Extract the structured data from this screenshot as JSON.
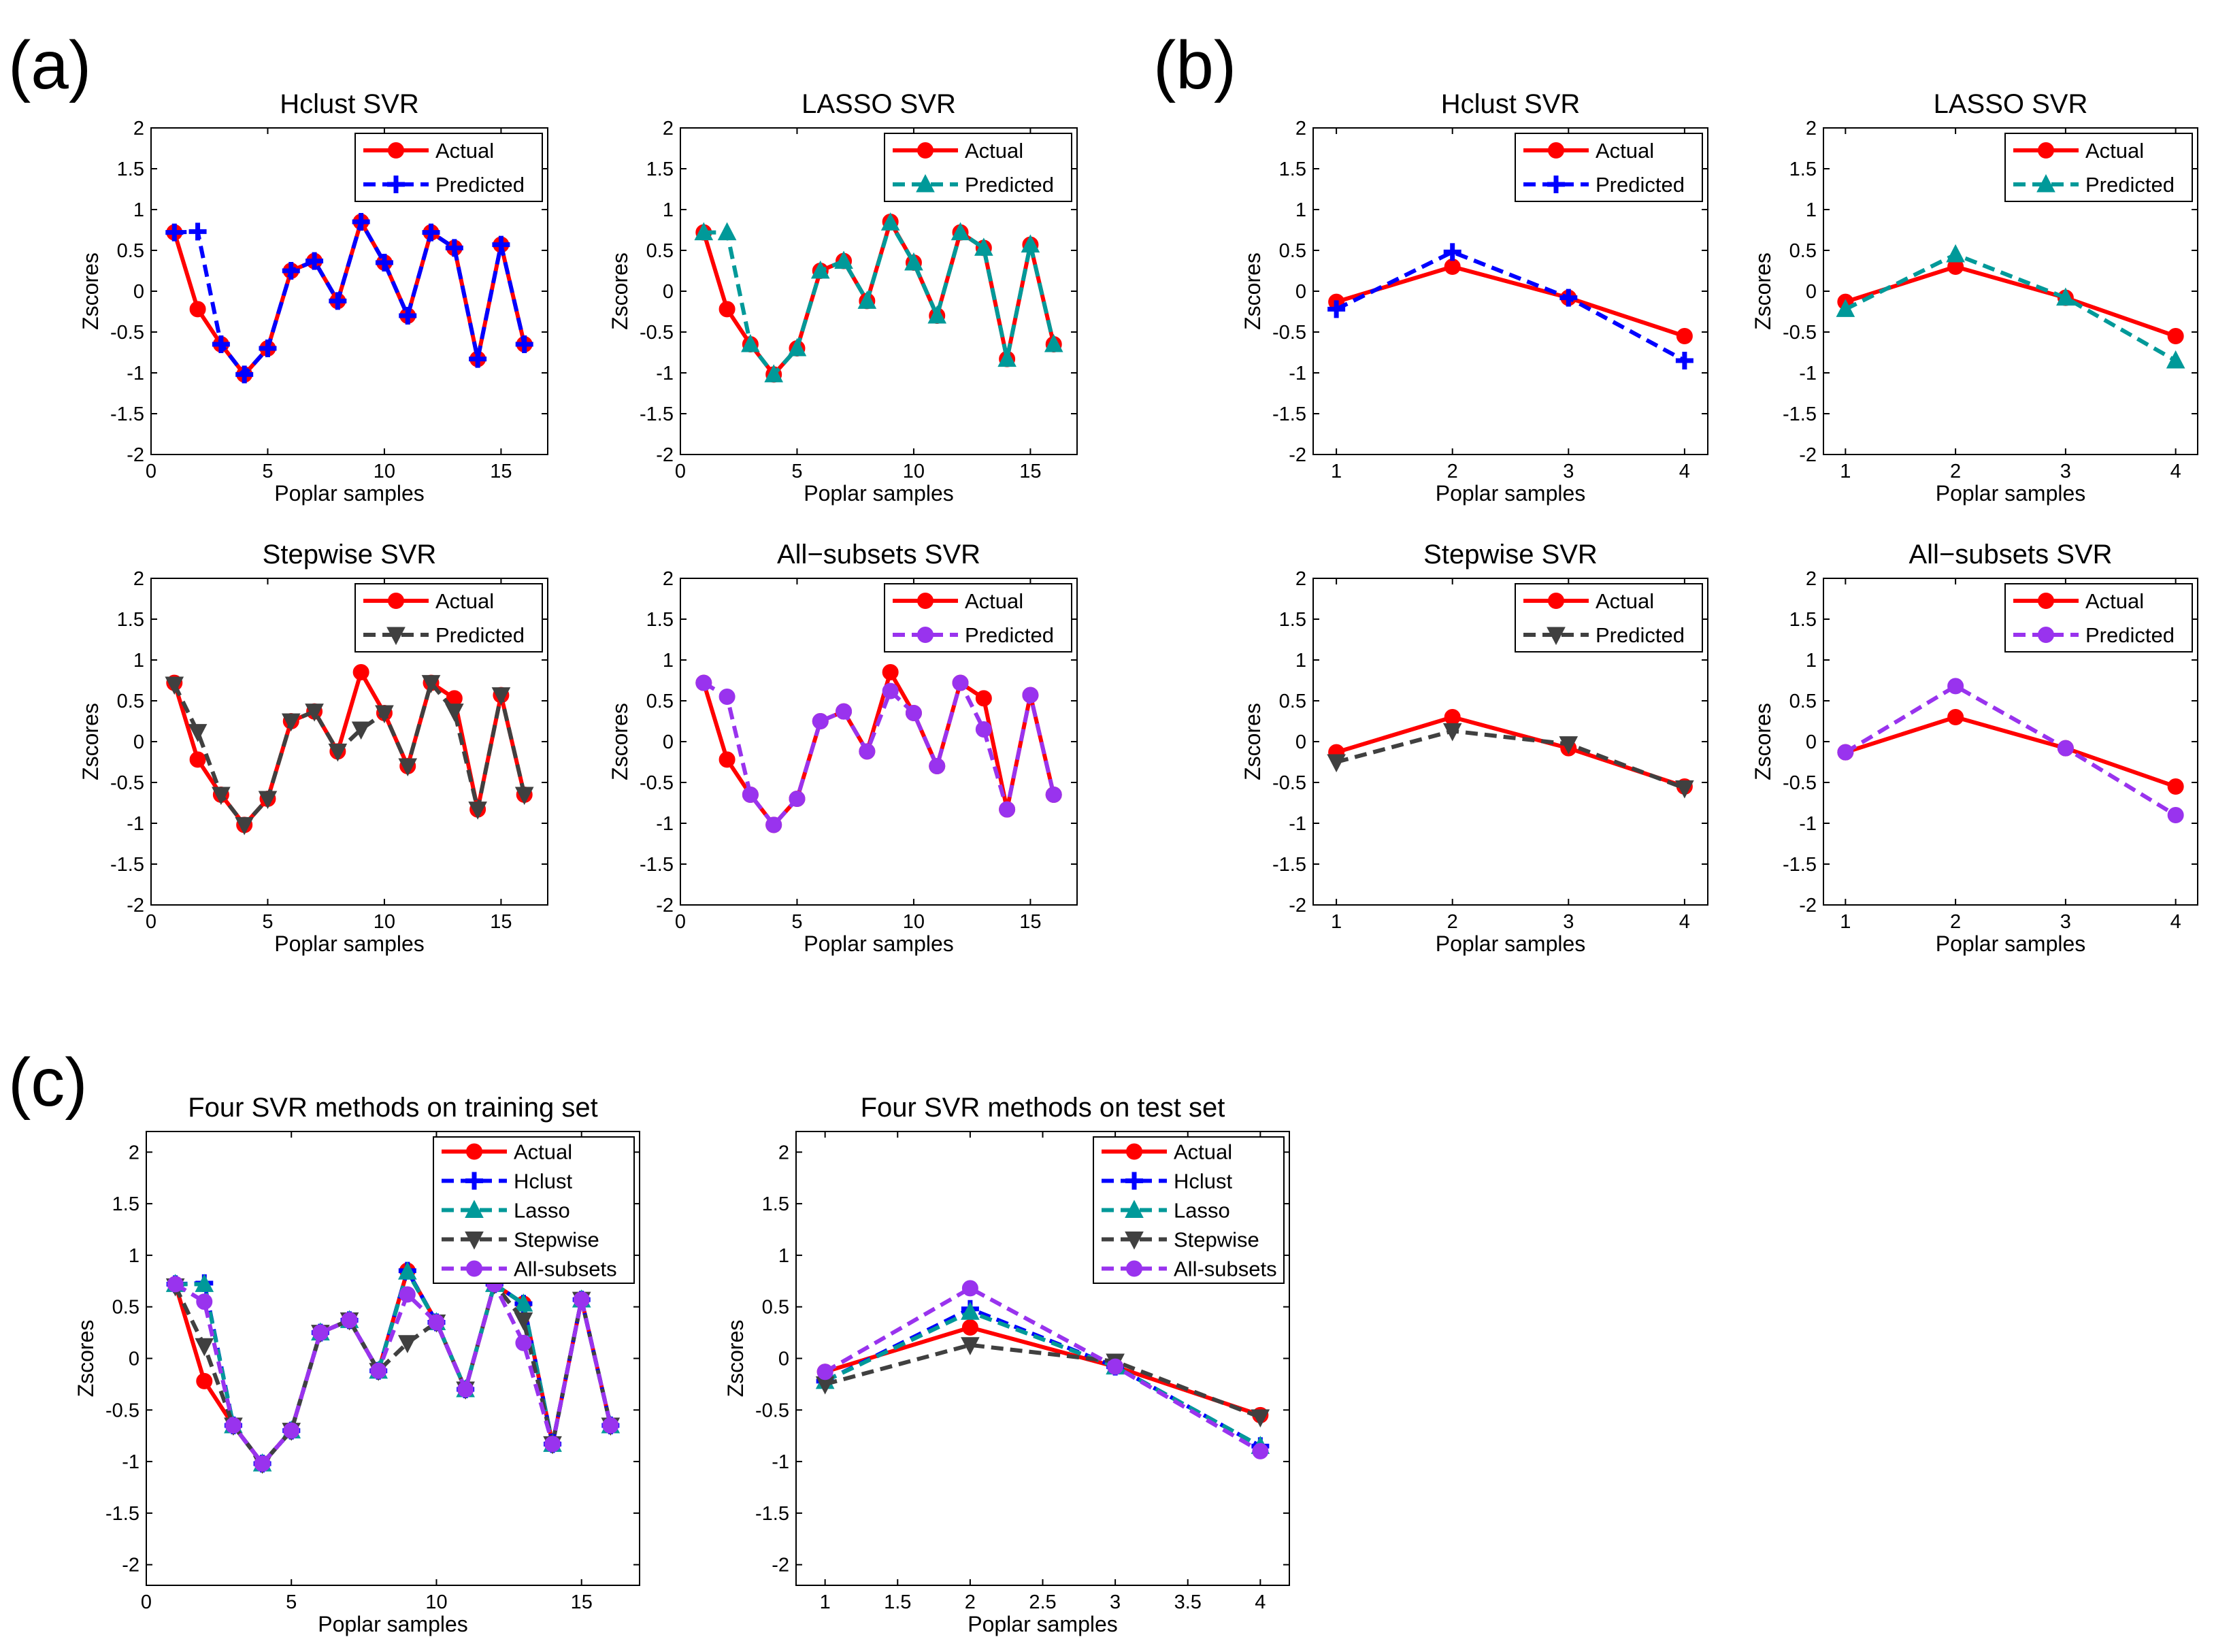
{
  "panel_labels": [
    "(a)",
    "(b)",
    "(c)"
  ],
  "series_styles": {
    "Actual": {
      "color": "#ff0000",
      "dash": "solid",
      "marker": "circle"
    },
    "Hclust": {
      "color": "#0000ff",
      "dash": "dashed",
      "marker": "plus"
    },
    "Lasso": {
      "color": "#009999",
      "dash": "dashed",
      "marker": "triangle-up"
    },
    "Stepwise": {
      "color": "#404040",
      "dash": "dashed",
      "marker": "triangle-down"
    },
    "All-subsets": {
      "color": "#9933ee",
      "dash": "dashed",
      "marker": "circle"
    }
  },
  "chart_data": [
    {
      "id": "a1",
      "type": "line",
      "title": "Hclust SVR",
      "xlabel": "Poplar samples",
      "ylabel": "Zscores",
      "xlim": [
        0,
        17
      ],
      "ylim": [
        -2,
        2
      ],
      "xticks": [
        0,
        5,
        10,
        15
      ],
      "xtick_labels": [
        "0",
        "5",
        "10",
        "15"
      ],
      "yticks": [
        -2,
        -1.5,
        -1,
        -0.5,
        0,
        0.5,
        1,
        1.5,
        2
      ],
      "ytick_labels": [
        "-2",
        "-1.5",
        "-1",
        "-0.5",
        "0",
        "0.5",
        "1",
        "1.5",
        "2"
      ],
      "x": [
        1,
        2,
        3,
        4,
        5,
        6,
        7,
        8,
        9,
        10,
        11,
        12,
        13,
        14,
        15,
        16
      ],
      "series": [
        {
          "name": "Actual",
          "label": "Actual",
          "style": "Actual",
          "values": [
            0.72,
            -0.22,
            -0.65,
            -1.02,
            -0.7,
            0.25,
            0.37,
            -0.12,
            0.85,
            0.35,
            -0.3,
            0.72,
            0.53,
            -0.83,
            0.57,
            -0.65
          ]
        },
        {
          "name": "Predicted",
          "label": "Predicted",
          "style": "Hclust",
          "values": [
            0.72,
            0.73,
            -0.65,
            -1.02,
            -0.7,
            0.25,
            0.37,
            -0.12,
            0.85,
            0.35,
            -0.3,
            0.72,
            0.53,
            -0.83,
            0.57,
            -0.65
          ]
        }
      ],
      "legend": "top-right"
    },
    {
      "id": "a2",
      "type": "line",
      "title": "LASSO SVR",
      "xlabel": "Poplar samples",
      "ylabel": "Zscores",
      "xlim": [
        0,
        17
      ],
      "ylim": [
        -2,
        2
      ],
      "xticks": [
        0,
        5,
        10,
        15
      ],
      "xtick_labels": [
        "0",
        "5",
        "10",
        "15"
      ],
      "yticks": [
        -2,
        -1.5,
        -1,
        -0.5,
        0,
        0.5,
        1,
        1.5,
        2
      ],
      "ytick_labels": [
        "-2",
        "-1.5",
        "-1",
        "-0.5",
        "0",
        "0.5",
        "1",
        "1.5",
        "2"
      ],
      "x": [
        1,
        2,
        3,
        4,
        5,
        6,
        7,
        8,
        9,
        10,
        11,
        12,
        13,
        14,
        15,
        16
      ],
      "series": [
        {
          "name": "Actual",
          "label": "Actual",
          "style": "Actual",
          "values": [
            0.72,
            -0.22,
            -0.65,
            -1.02,
            -0.7,
            0.25,
            0.37,
            -0.12,
            0.85,
            0.35,
            -0.3,
            0.72,
            0.53,
            -0.83,
            0.57,
            -0.65
          ]
        },
        {
          "name": "Predicted",
          "label": "Predicted",
          "style": "Lasso",
          "values": [
            0.72,
            0.72,
            -0.65,
            -1.02,
            -0.7,
            0.25,
            0.37,
            -0.12,
            0.84,
            0.35,
            -0.3,
            0.72,
            0.53,
            -0.83,
            0.57,
            -0.65
          ]
        }
      ],
      "legend": "top-right"
    },
    {
      "id": "a3",
      "type": "line",
      "title": "Stepwise SVR",
      "xlabel": "Poplar samples",
      "ylabel": "Zscores",
      "xlim": [
        0,
        17
      ],
      "ylim": [
        -2,
        2
      ],
      "xticks": [
        0,
        5,
        10,
        15
      ],
      "xtick_labels": [
        "0",
        "5",
        "10",
        "15"
      ],
      "yticks": [
        -2,
        -1.5,
        -1,
        -0.5,
        0,
        0.5,
        1,
        1.5,
        2
      ],
      "ytick_labels": [
        "-2",
        "-1.5",
        "-1",
        "-0.5",
        "0",
        "0.5",
        "1",
        "1.5",
        "2"
      ],
      "x": [
        1,
        2,
        3,
        4,
        5,
        6,
        7,
        8,
        9,
        10,
        11,
        12,
        13,
        14,
        15,
        16
      ],
      "series": [
        {
          "name": "Actual",
          "label": "Actual",
          "style": "Actual",
          "values": [
            0.72,
            -0.22,
            -0.65,
            -1.02,
            -0.7,
            0.25,
            0.37,
            -0.12,
            0.85,
            0.35,
            -0.3,
            0.72,
            0.53,
            -0.83,
            0.57,
            -0.65
          ]
        },
        {
          "name": "Predicted",
          "label": "Predicted",
          "style": "Stepwise",
          "values": [
            0.7,
            0.12,
            -0.65,
            -1.02,
            -0.7,
            0.25,
            0.37,
            -0.12,
            0.15,
            0.35,
            -0.3,
            0.72,
            0.37,
            -0.83,
            0.57,
            -0.65
          ]
        }
      ],
      "legend": "top-right"
    },
    {
      "id": "a4",
      "type": "line",
      "title": "All−subsets SVR",
      "xlabel": "Poplar samples",
      "ylabel": "Zscores",
      "xlim": [
        0,
        17
      ],
      "ylim": [
        -2,
        2
      ],
      "xticks": [
        0,
        5,
        10,
        15
      ],
      "xtick_labels": [
        "0",
        "5",
        "10",
        "15"
      ],
      "yticks": [
        -2,
        -1.5,
        -1,
        -0.5,
        0,
        0.5,
        1,
        1.5,
        2
      ],
      "ytick_labels": [
        "-2",
        "-1.5",
        "-1",
        "-0.5",
        "0",
        "0.5",
        "1",
        "1.5",
        "2"
      ],
      "x": [
        1,
        2,
        3,
        4,
        5,
        6,
        7,
        8,
        9,
        10,
        11,
        12,
        13,
        14,
        15,
        16
      ],
      "series": [
        {
          "name": "Actual",
          "label": "Actual",
          "style": "Actual",
          "values": [
            0.72,
            -0.22,
            -0.65,
            -1.02,
            -0.7,
            0.25,
            0.37,
            -0.12,
            0.85,
            0.35,
            -0.3,
            0.72,
            0.53,
            -0.83,
            0.57,
            -0.65
          ]
        },
        {
          "name": "Predicted",
          "label": "Predicted",
          "style": "All-subsets",
          "values": [
            0.72,
            0.55,
            -0.65,
            -1.02,
            -0.7,
            0.25,
            0.37,
            -0.12,
            0.62,
            0.35,
            -0.3,
            0.72,
            0.15,
            -0.83,
            0.57,
            -0.65
          ]
        }
      ],
      "legend": "top-right"
    },
    {
      "id": "b1",
      "type": "line",
      "title": "Hclust SVR",
      "xlabel": "Poplar samples",
      "ylabel": "Zscores",
      "xlim": [
        0.8,
        4.2
      ],
      "ylim": [
        -2,
        2
      ],
      "xticks": [
        1,
        2,
        3,
        4
      ],
      "xtick_labels": [
        "1",
        "2",
        "3",
        "4"
      ],
      "yticks": [
        -2,
        -1.5,
        -1,
        -0.5,
        0,
        0.5,
        1,
        1.5,
        2
      ],
      "ytick_labels": [
        "-2",
        "-1.5",
        "-1",
        "-0.5",
        "0",
        "0.5",
        "1",
        "1.5",
        "2"
      ],
      "x": [
        1,
        2,
        3,
        4
      ],
      "series": [
        {
          "name": "Actual",
          "label": "Actual",
          "style": "Actual",
          "values": [
            -0.13,
            0.3,
            -0.08,
            -0.55
          ]
        },
        {
          "name": "Predicted",
          "label": "Predicted",
          "style": "Hclust",
          "values": [
            -0.22,
            0.48,
            -0.08,
            -0.85
          ]
        }
      ],
      "legend": "top-right"
    },
    {
      "id": "b2",
      "type": "line",
      "title": "LASSO SVR",
      "xlabel": "Poplar samples",
      "ylabel": "Zscores",
      "xlim": [
        0.8,
        4.2
      ],
      "ylim": [
        -2,
        2
      ],
      "xticks": [
        1,
        2,
        3,
        4
      ],
      "xtick_labels": [
        "1",
        "2",
        "3",
        "4"
      ],
      "yticks": [
        -2,
        -1.5,
        -1,
        -0.5,
        0,
        0.5,
        1,
        1.5,
        2
      ],
      "ytick_labels": [
        "-2",
        "-1.5",
        "-1",
        "-0.5",
        "0",
        "0.5",
        "1",
        "1.5",
        "2"
      ],
      "x": [
        1,
        2,
        3,
        4
      ],
      "series": [
        {
          "name": "Actual",
          "label": "Actual",
          "style": "Actual",
          "values": [
            -0.13,
            0.3,
            -0.08,
            -0.55
          ]
        },
        {
          "name": "Predicted",
          "label": "Predicted",
          "style": "Lasso",
          "values": [
            -0.22,
            0.45,
            -0.08,
            -0.85
          ]
        }
      ],
      "legend": "top-right"
    },
    {
      "id": "b3",
      "type": "line",
      "title": "Stepwise SVR",
      "xlabel": "Poplar samples",
      "ylabel": "Zscores",
      "xlim": [
        0.8,
        4.2
      ],
      "ylim": [
        -2,
        2
      ],
      "xticks": [
        1,
        2,
        3,
        4
      ],
      "xtick_labels": [
        "1",
        "2",
        "3",
        "4"
      ],
      "yticks": [
        -2,
        -1.5,
        -1,
        -0.5,
        0,
        0.5,
        1,
        1.5,
        2
      ],
      "ytick_labels": [
        "-2",
        "-1.5",
        "-1",
        "-0.5",
        "0",
        "0.5",
        "1",
        "1.5",
        "2"
      ],
      "x": [
        1,
        2,
        3,
        4
      ],
      "series": [
        {
          "name": "Actual",
          "label": "Actual",
          "style": "Actual",
          "values": [
            -0.13,
            0.3,
            -0.08,
            -0.55
          ]
        },
        {
          "name": "Predicted",
          "label": "Predicted",
          "style": "Stepwise",
          "values": [
            -0.25,
            0.13,
            -0.03,
            -0.57
          ]
        }
      ],
      "legend": "top-right"
    },
    {
      "id": "b4",
      "type": "line",
      "title": "All−subsets SVR",
      "xlabel": "Poplar samples",
      "ylabel": "Zscores",
      "xlim": [
        0.8,
        4.2
      ],
      "ylim": [
        -2,
        2
      ],
      "xticks": [
        1,
        2,
        3,
        4
      ],
      "xtick_labels": [
        "1",
        "2",
        "3",
        "4"
      ],
      "yticks": [
        -2,
        -1.5,
        -1,
        -0.5,
        0,
        0.5,
        1,
        1.5,
        2
      ],
      "ytick_labels": [
        "-2",
        "-1.5",
        "-1",
        "-0.5",
        "0",
        "0.5",
        "1",
        "1.5",
        "2"
      ],
      "x": [
        1,
        2,
        3,
        4
      ],
      "series": [
        {
          "name": "Actual",
          "label": "Actual",
          "style": "Actual",
          "values": [
            -0.13,
            0.3,
            -0.08,
            -0.55
          ]
        },
        {
          "name": "Predicted",
          "label": "Predicted",
          "style": "All-subsets",
          "values": [
            -0.13,
            0.68,
            -0.08,
            -0.9
          ]
        }
      ],
      "legend": "top-right"
    },
    {
      "id": "c1",
      "type": "line",
      "title": "Four SVR methods on training set",
      "xlabel": "Poplar samples",
      "ylabel": "Zscores",
      "xlim": [
        0,
        17
      ],
      "ylim": [
        -2.2,
        2.2
      ],
      "xticks": [
        0,
        5,
        10,
        15
      ],
      "xtick_labels": [
        "0",
        "5",
        "10",
        "15"
      ],
      "yticks": [
        -2,
        -1.5,
        -1,
        -0.5,
        0,
        0.5,
        1,
        1.5,
        2
      ],
      "ytick_labels": [
        "-2",
        "-1.5",
        "-1",
        "-0.5",
        "0",
        "0.5",
        "1",
        "1.5",
        "2"
      ],
      "x": [
        1,
        2,
        3,
        4,
        5,
        6,
        7,
        8,
        9,
        10,
        11,
        12,
        13,
        14,
        15,
        16
      ],
      "series": [
        {
          "name": "Actual",
          "label": "Actual",
          "style": "Actual",
          "values": [
            0.72,
            -0.22,
            -0.65,
            -1.02,
            -0.7,
            0.25,
            0.37,
            -0.12,
            0.85,
            0.35,
            -0.3,
            0.72,
            0.53,
            -0.83,
            0.57,
            -0.65
          ]
        },
        {
          "name": "Hclust",
          "label": "Hclust",
          "style": "Hclust",
          "values": [
            0.72,
            0.73,
            -0.65,
            -1.02,
            -0.7,
            0.25,
            0.37,
            -0.12,
            0.85,
            0.35,
            -0.3,
            0.72,
            0.53,
            -0.83,
            0.57,
            -0.65
          ]
        },
        {
          "name": "Lasso",
          "label": "Lasso",
          "style": "Lasso",
          "values": [
            0.72,
            0.72,
            -0.65,
            -1.02,
            -0.7,
            0.25,
            0.37,
            -0.12,
            0.84,
            0.35,
            -0.3,
            0.72,
            0.53,
            -0.83,
            0.57,
            -0.65
          ]
        },
        {
          "name": "Stepwise",
          "label": "Stepwise",
          "style": "Stepwise",
          "values": [
            0.7,
            0.12,
            -0.65,
            -1.02,
            -0.7,
            0.25,
            0.37,
            -0.12,
            0.15,
            0.35,
            -0.3,
            0.72,
            0.37,
            -0.83,
            0.57,
            -0.65
          ]
        },
        {
          "name": "All-subsets",
          "label": "All-subsets",
          "style": "All-subsets",
          "values": [
            0.72,
            0.55,
            -0.65,
            -1.02,
            -0.7,
            0.25,
            0.37,
            -0.12,
            0.62,
            0.35,
            -0.3,
            0.72,
            0.15,
            -0.83,
            0.57,
            -0.65
          ]
        }
      ],
      "legend": "top-right"
    },
    {
      "id": "c2",
      "type": "line",
      "title": "Four SVR methods on test set",
      "xlabel": "Poplar samples",
      "ylabel": "Zscores",
      "xlim": [
        0.8,
        4.2
      ],
      "ylim": [
        -2.2,
        2.2
      ],
      "xticks": [
        1,
        1.5,
        2,
        2.5,
        3,
        3.5,
        4
      ],
      "xtick_labels": [
        "1",
        "1.5",
        "2",
        "2.5",
        "3",
        "3.5",
        "4"
      ],
      "yticks": [
        -2,
        -1.5,
        -1,
        -0.5,
        0,
        0.5,
        1,
        1.5,
        2
      ],
      "ytick_labels": [
        "-2",
        "-1.5",
        "-1",
        "-0.5",
        "0",
        "0.5",
        "1",
        "1.5",
        "2"
      ],
      "x": [
        1,
        2,
        3,
        4
      ],
      "series": [
        {
          "name": "Actual",
          "label": "Actual",
          "style": "Actual",
          "values": [
            -0.13,
            0.3,
            -0.08,
            -0.55
          ]
        },
        {
          "name": "Hclust",
          "label": "Hclust",
          "style": "Hclust",
          "values": [
            -0.22,
            0.48,
            -0.08,
            -0.85
          ]
        },
        {
          "name": "Lasso",
          "label": "Lasso",
          "style": "Lasso",
          "values": [
            -0.22,
            0.45,
            -0.08,
            -0.85
          ]
        },
        {
          "name": "Stepwise",
          "label": "Stepwise",
          "style": "Stepwise",
          "values": [
            -0.25,
            0.13,
            -0.03,
            -0.57
          ]
        },
        {
          "name": "All-subsets",
          "label": "All-subsets",
          "style": "All-subsets",
          "values": [
            -0.13,
            0.68,
            -0.08,
            -0.9
          ]
        }
      ],
      "legend": "top-right"
    }
  ]
}
